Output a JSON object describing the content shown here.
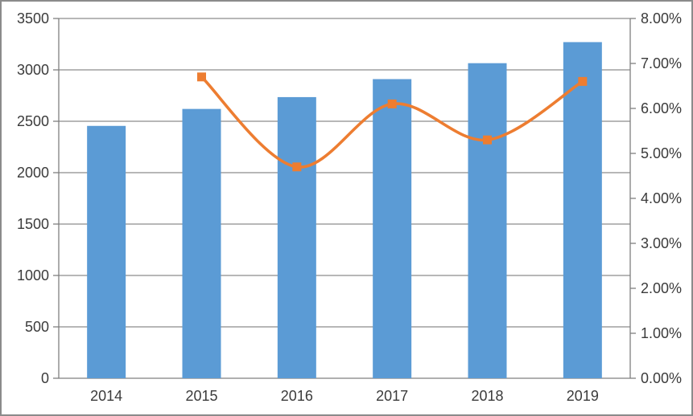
{
  "chart_data": {
    "type": "combo",
    "title": "",
    "categories": [
      "2014",
      "2015",
      "2016",
      "2017",
      "2018",
      "2019"
    ],
    "series": [
      {
        "id": "bars",
        "type": "bar",
        "axis": "left",
        "color": "#5b9bd5",
        "values": [
          2455,
          2620,
          2735,
          2910,
          3065,
          3270
        ]
      },
      {
        "id": "line",
        "type": "line",
        "axis": "right",
        "color": "#ed7d31",
        "smooth": true,
        "marker": "square",
        "values": [
          null,
          6.7,
          4.7,
          6.1,
          5.3,
          6.6
        ]
      }
    ],
    "left_axis": {
      "min": 0,
      "max": 3500,
      "step": 500,
      "tick_labels": [
        "0",
        "500",
        "1000",
        "1500",
        "2000",
        "2500",
        "3000",
        "3500"
      ]
    },
    "right_axis": {
      "min": 0,
      "max": 8,
      "step": 1,
      "tick_labels": [
        "0.00%",
        "1.00%",
        "2.00%",
        "3.00%",
        "4.00%",
        "5.00%",
        "6.00%",
        "7.00%",
        "8.00%"
      ]
    },
    "grid": "horizontal",
    "legend": "none"
  },
  "style": {
    "bar_color": "#5b9bd5",
    "line_color": "#ed7d31",
    "gridline_color": "#8c8c8c",
    "axis_color": "#7f7f7f",
    "tick_label_color": "#3b3b3b",
    "frame_border_color": "#8b8b8b",
    "background_color": "#ffffff"
  }
}
